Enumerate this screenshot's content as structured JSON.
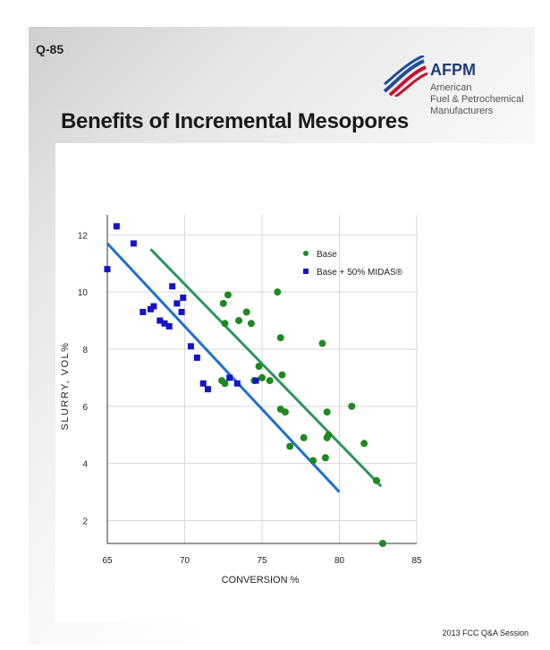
{
  "slide": {
    "id": "Q-85",
    "title": "Benefits of Incremental Mesopores",
    "footer": "2013 FCC Q&A Session"
  },
  "logo": {
    "name": "AFPM",
    "subtitle": "American\nFuel & Petrochemical\nManufacturers",
    "colors": {
      "red": "#c8102e",
      "blue": "#1f4e9c"
    }
  },
  "chart_data": {
    "type": "scatter",
    "xlabel": "CONVERSION %",
    "ylabel": "SLURRY, VOL%",
    "xlim": [
      65,
      85
    ],
    "ylim": [
      1.2,
      12.7
    ],
    "xticks": [
      65,
      70,
      75,
      80,
      85
    ],
    "yticks": [
      2,
      4,
      6,
      8,
      10,
      12
    ],
    "grid": true,
    "legend_position": "top-right",
    "series": [
      {
        "name": "Base",
        "marker": "circle",
        "color": "#1e8a1e",
        "points": [
          [
            72.5,
            9.6
          ],
          [
            72.8,
            9.9
          ],
          [
            72.6,
            8.9
          ],
          [
            73.5,
            9.0
          ],
          [
            74.0,
            9.3
          ],
          [
            74.3,
            8.9
          ],
          [
            72.4,
            6.9
          ],
          [
            72.6,
            6.8
          ],
          [
            74.5,
            6.9
          ],
          [
            74.8,
            7.4
          ],
          [
            75.0,
            7.0
          ],
          [
            75.5,
            6.9
          ],
          [
            76.0,
            10.0
          ],
          [
            76.2,
            8.4
          ],
          [
            76.3,
            7.1
          ],
          [
            76.2,
            5.9
          ],
          [
            76.5,
            5.8
          ],
          [
            76.8,
            4.6
          ],
          [
            77.7,
            4.9
          ],
          [
            78.3,
            4.1
          ],
          [
            78.9,
            8.2
          ],
          [
            79.1,
            4.2
          ],
          [
            79.2,
            4.9
          ],
          [
            79.2,
            5.8
          ],
          [
            79.3,
            5.0
          ],
          [
            80.8,
            6.0
          ],
          [
            81.6,
            4.7
          ],
          [
            82.4,
            3.4
          ],
          [
            82.8,
            1.2
          ]
        ]
      },
      {
        "name": "Base + 50% MIDAS®",
        "marker": "square",
        "color": "#1414c8",
        "points": [
          [
            65.0,
            10.8
          ],
          [
            65.6,
            12.3
          ],
          [
            66.7,
            11.7
          ],
          [
            67.3,
            9.3
          ],
          [
            67.8,
            9.4
          ],
          [
            68.0,
            9.5
          ],
          [
            68.4,
            9.0
          ],
          [
            68.7,
            8.9
          ],
          [
            69.0,
            8.8
          ],
          [
            69.2,
            10.2
          ],
          [
            69.5,
            9.6
          ],
          [
            69.8,
            9.3
          ],
          [
            69.9,
            9.8
          ],
          [
            70.4,
            8.1
          ],
          [
            70.8,
            7.7
          ],
          [
            71.2,
            6.8
          ],
          [
            71.5,
            6.6
          ],
          [
            72.9,
            7.0
          ],
          [
            73.4,
            6.8
          ],
          [
            74.6,
            6.9
          ]
        ]
      }
    ],
    "trendlines": [
      {
        "series": "Base",
        "x": [
          67.8,
          82.7
        ],
        "y": [
          11.5,
          3.2
        ],
        "color": "#2e9460"
      },
      {
        "series": "Base + 50% MIDAS®",
        "x": [
          65.0,
          80.0
        ],
        "y": [
          11.7,
          3.0
        ],
        "color": "#1f6fd6"
      }
    ]
  }
}
